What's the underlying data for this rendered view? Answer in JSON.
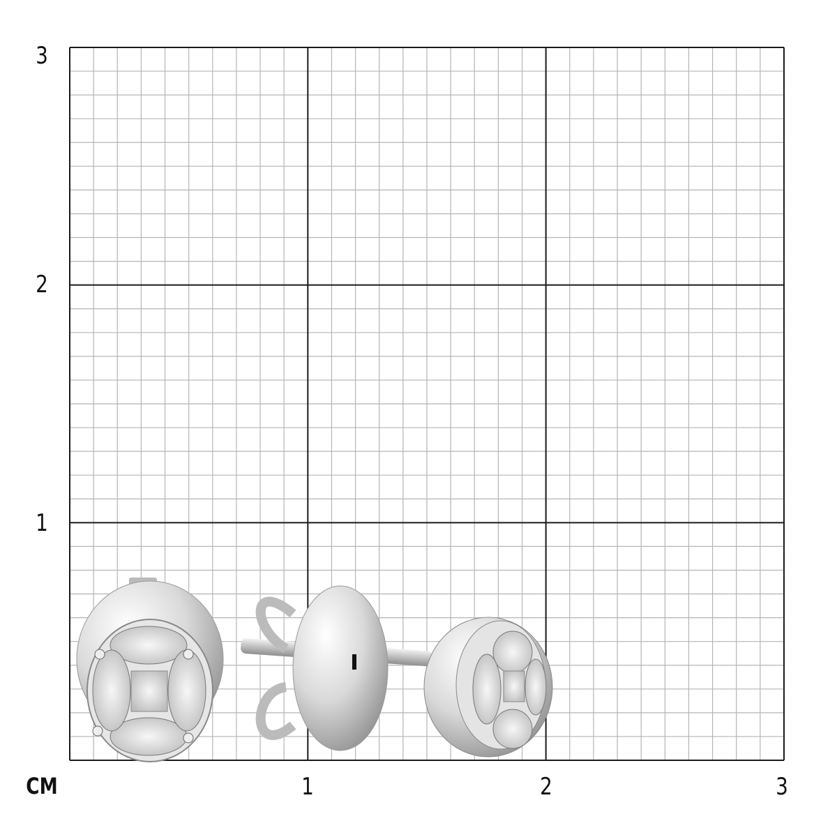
{
  "scale": {
    "unit_label": "CM",
    "x_ticks": [
      "1",
      "2",
      "3"
    ],
    "y_ticks": [
      "1",
      "2",
      "3"
    ],
    "range_cm": [
      0,
      3
    ],
    "minor_divisions_per_cm": 10
  },
  "colors": {
    "major_grid": "#1a1a1a",
    "minor_grid": "#b5b5b5",
    "metal": "#d8d8d8",
    "metal_shadow": "#8a8a8a"
  },
  "product": {
    "items": [
      "earring-front-view",
      "earring-side-view"
    ]
  }
}
